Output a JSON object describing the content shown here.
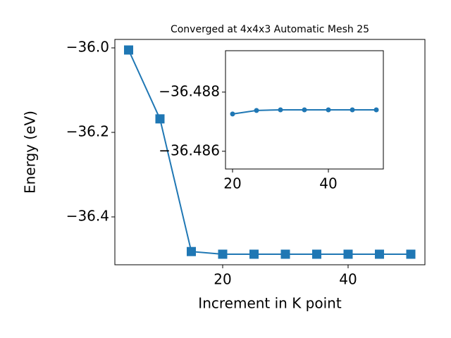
{
  "chart_data": [
    {
      "type": "line",
      "title": "Converged at 4x4x3 Automatic Mesh 25",
      "x_label": "Increment in K point",
      "y_label": "Energy (eV)",
      "x": [
        5,
        10,
        15,
        20,
        25,
        30,
        35,
        40,
        45,
        50
      ],
      "series": [
        {
          "color": "#1f77b4",
          "marker": "square",
          "values": [
            -36.005,
            -36.168,
            -36.482,
            -36.4883,
            -36.4883,
            -36.4883,
            -36.4883,
            -36.4883,
            -36.4883,
            -36.4883
          ]
        }
      ],
      "xlim": [
        2.81,
        52.25
      ],
      "ylim": [
        -36.5133,
        -35.98
      ],
      "xticks": [
        20,
        40
      ],
      "yticks": [
        {
          "value": -36.0,
          "label": "−36.0"
        },
        {
          "value": -36.2,
          "label": "−36.2"
        },
        {
          "value": -36.4,
          "label": "−36.4"
        }
      ]
    },
    {
      "type": "line",
      "x": [
        20,
        25,
        30,
        35,
        40,
        45,
        50
      ],
      "series": [
        {
          "color": "#1f77b4",
          "marker": "circle",
          "values": [
            -36.48726,
            -36.48738,
            -36.4874,
            -36.4874,
            -36.4874,
            -36.4874,
            -36.4874
          ]
        }
      ],
      "xlim": [
        18.53,
        51.47
      ],
      "ylim": [
        -36.4854,
        -36.4894
      ],
      "xticks": [
        20,
        40
      ],
      "yticks": [
        {
          "value": -36.488,
          "label": "−36.488"
        },
        {
          "value": -36.486,
          "label": "−36.486"
        }
      ]
    }
  ]
}
